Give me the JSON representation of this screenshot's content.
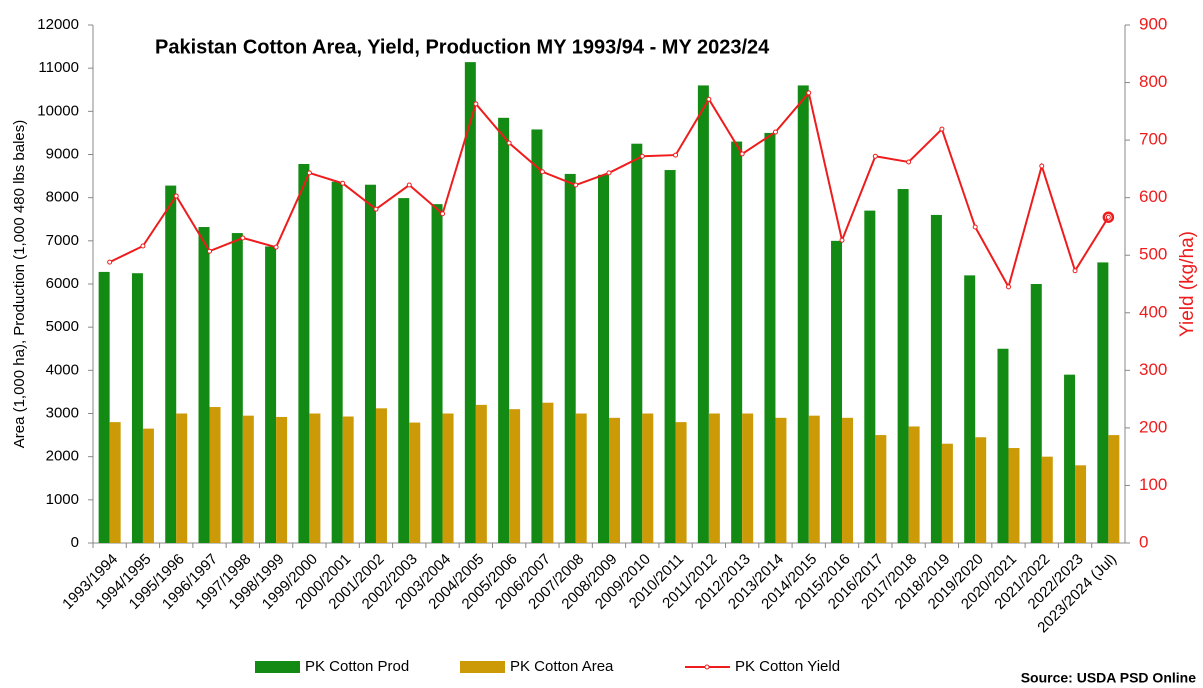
{
  "chart_data": {
    "type": "bar_line",
    "title": "Pakistan Cotton Area, Yield, Production MY 1993/94 - MY 2023/24",
    "y_label": "Area (1,000 ha), Production (1,000 480 lbs bales)",
    "y2_label": "Yield (kg/ha)",
    "source": "Source: USDA PSD Online",
    "categories": [
      "1993/1994",
      "1994/1995",
      "1995/1996",
      "1996/1997",
      "1997/1998",
      "1998/1999",
      "1999/2000",
      "2000/2001",
      "2001/2002",
      "2002/2003",
      "2003/2004",
      "2004/2005",
      "2005/2006",
      "2006/2007",
      "2007/2008",
      "2008/2009",
      "2009/2010",
      "2010/2011",
      "2011/2012",
      "2012/2013",
      "2013/2014",
      "2014/2015",
      "2015/2016",
      "2016/2017",
      "2017/2018",
      "2018/2019",
      "2019/2020",
      "2020/2021",
      "2021/2022",
      "2022/2023",
      "2023/2024 (Jul)"
    ],
    "series": [
      {
        "name": "PK Cotton Prod",
        "color": "#138a13",
        "kind": "bar",
        "values": [
          6280,
          6250,
          8280,
          7320,
          7180,
          6870,
          8780,
          8370,
          8300,
          7990,
          7850,
          11140,
          9850,
          9580,
          8550,
          8530,
          9250,
          8640,
          10600,
          9300,
          9500,
          10600,
          7000,
          7700,
          8200,
          7600,
          6200,
          4500,
          6000,
          3900,
          6500
        ]
      },
      {
        "name": "PK Cotton Area",
        "color": "#cc9a06",
        "kind": "bar",
        "values": [
          2800,
          2650,
          3000,
          3150,
          2950,
          2920,
          3000,
          2930,
          3120,
          2790,
          3000,
          3200,
          3100,
          3250,
          3000,
          2900,
          3000,
          2800,
          3000,
          3000,
          2900,
          2950,
          2900,
          2500,
          2700,
          2300,
          2450,
          2200,
          2000,
          1800,
          2500
        ]
      },
      {
        "name": "PK Cotton Yield",
        "color": "#ee1c1c",
        "kind": "line",
        "axis": "y2",
        "values": [
          488,
          516,
          603,
          507,
          530,
          514,
          643,
          625,
          580,
          622,
          572,
          763,
          695,
          645,
          622,
          643,
          672,
          674,
          771,
          676,
          714,
          782,
          526,
          672,
          662,
          719,
          549,
          445,
          655,
          473,
          566
        ]
      }
    ],
    "ylim": [
      0,
      12000
    ],
    "yticks": [
      0,
      1000,
      2000,
      3000,
      4000,
      5000,
      6000,
      7000,
      8000,
      9000,
      10000,
      11000,
      12000
    ],
    "y2lim": [
      0,
      900
    ],
    "y2ticks": [
      0,
      100,
      200,
      300,
      400,
      500,
      600,
      700,
      800,
      900
    ],
    "grid": false,
    "legend": "bottom"
  }
}
